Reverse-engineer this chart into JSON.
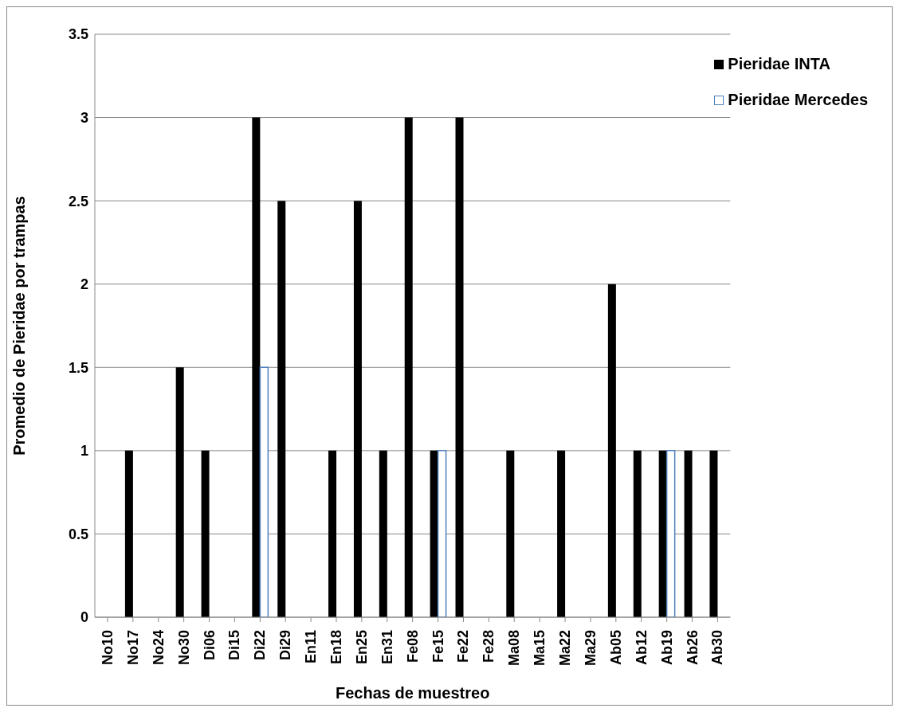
{
  "chart_data": {
    "type": "bar",
    "xlabel": "Fechas de muestreo",
    "ylabel": "Promedio de Pieridae por trampas",
    "categories": [
      "No10",
      "No17",
      "No24",
      "No30",
      "Di06",
      "Di15",
      "Di22",
      "Di29",
      "En11",
      "En18",
      "En25",
      "En31",
      "Fe08",
      "Fe15",
      "Fe22",
      "Fe28",
      "Ma08",
      "Ma15",
      "Ma22",
      "Ma29",
      "Ab05",
      "Ab12",
      "Ab19",
      "Ab26",
      "Ab30"
    ],
    "series": [
      {
        "name": "Pieridae INTA",
        "color": "#000000",
        "values": [
          0,
          1,
          0,
          1.5,
          1,
          0,
          3,
          2.5,
          0,
          1,
          2.5,
          1,
          3,
          1,
          3,
          0,
          1,
          0,
          1,
          0,
          2,
          1,
          1,
          1,
          1
        ]
      },
      {
        "name": "Pieridae Mercedes",
        "color": "#4f81bd",
        "values": [
          0,
          0,
          0,
          0,
          0,
          0,
          1.5,
          0,
          0,
          0,
          0,
          0,
          0,
          1,
          0,
          0,
          0,
          0,
          0,
          0,
          0,
          0,
          1,
          0,
          0
        ]
      }
    ],
    "ylim": [
      0,
      3.5
    ],
    "yticks": [
      0,
      0.5,
      1,
      1.5,
      2,
      2.5,
      3,
      3.5
    ],
    "grid": "y",
    "legend": "top right"
  }
}
